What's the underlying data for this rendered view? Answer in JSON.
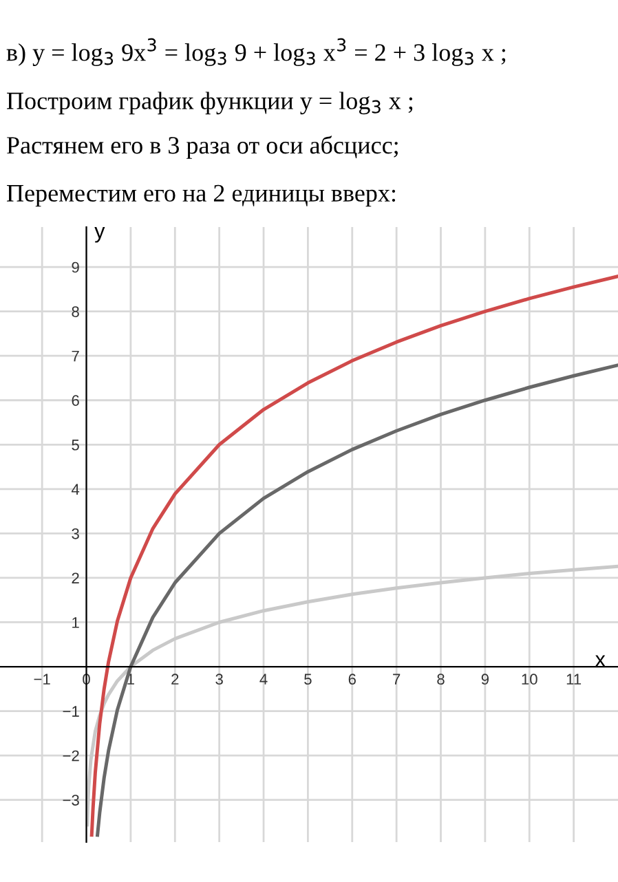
{
  "chart_data": {
    "type": "line",
    "title": "в) y = log$_{3}$ 9x$^{3}$ = log$_{3}$ 9 + log$_{3}$ x$^{3}$ = 2 + 3 log$_{3}$ x ;",
    "annotations": [
      "Построим график функции y = log$_{3}$ x ;",
      "Растянем его в 3 раза от оси абсцисс;",
      "Переместим его на 2 единицы вверх:"
    ],
    "xlabel": "x",
    "ylabel": "y",
    "series": [
      {
        "color": "#c9c9c9",
        "x": [
          0.02,
          0.03,
          0.05,
          0.1,
          0.2,
          0.3,
          0.4,
          0.5,
          0.7,
          1,
          1.5,
          2,
          3,
          4,
          5,
          6,
          7,
          8,
          9,
          10,
          11,
          12
        ],
        "values": [
          -3.56,
          -3.19,
          -2.73,
          -2.1,
          -1.46,
          -1.1,
          -0.83,
          -0.63,
          -0.32,
          0,
          0.37,
          0.63,
          1,
          1.26,
          1.46,
          1.63,
          1.77,
          1.89,
          2,
          2.1,
          2.18,
          2.26
        ]
      },
      {
        "color": "#686868",
        "x": [
          0.25,
          0.3,
          0.4,
          0.5,
          0.7,
          1,
          1.5,
          2,
          3,
          4,
          5,
          6,
          7,
          8,
          9,
          10,
          11,
          12
        ],
        "values": [
          -3.79,
          -3.29,
          -2.5,
          -1.89,
          -0.97,
          0,
          1.11,
          1.89,
          3,
          3.79,
          4.39,
          4.89,
          5.31,
          5.68,
          6,
          6.29,
          6.55,
          6.79
        ]
      },
      {
        "color": "#d04a4a",
        "x": [
          0.12,
          0.15,
          0.2,
          0.3,
          0.4,
          0.5,
          0.7,
          1,
          1.5,
          2,
          3,
          4,
          5,
          6,
          7,
          8,
          9,
          10,
          11,
          12
        ],
        "values": [
          -3.79,
          -3.18,
          -2.39,
          -1.29,
          -0.5,
          0.11,
          1.03,
          2,
          3.11,
          3.89,
          5,
          5.79,
          6.39,
          6.89,
          7.31,
          7.68,
          8,
          8.29,
          8.55,
          8.79
        ]
      }
    ],
    "xlim": [
      -1.95,
      12
    ],
    "ylim": [
      -3.95,
      9.9
    ],
    "xticks": [
      {
        "value": -1,
        "label": "−1"
      },
      0,
      1,
      2,
      3,
      4,
      5,
      6,
      7,
      8,
      9,
      10,
      11
    ],
    "yticks": [
      {
        "value": -3,
        "label": "−3"
      },
      {
        "value": -2,
        "label": "−2"
      },
      {
        "value": -1,
        "label": "−1"
      },
      1,
      2,
      3,
      4,
      5,
      6,
      7,
      8,
      9
    ],
    "grid": true,
    "marker": "none",
    "line_style": "solid"
  }
}
